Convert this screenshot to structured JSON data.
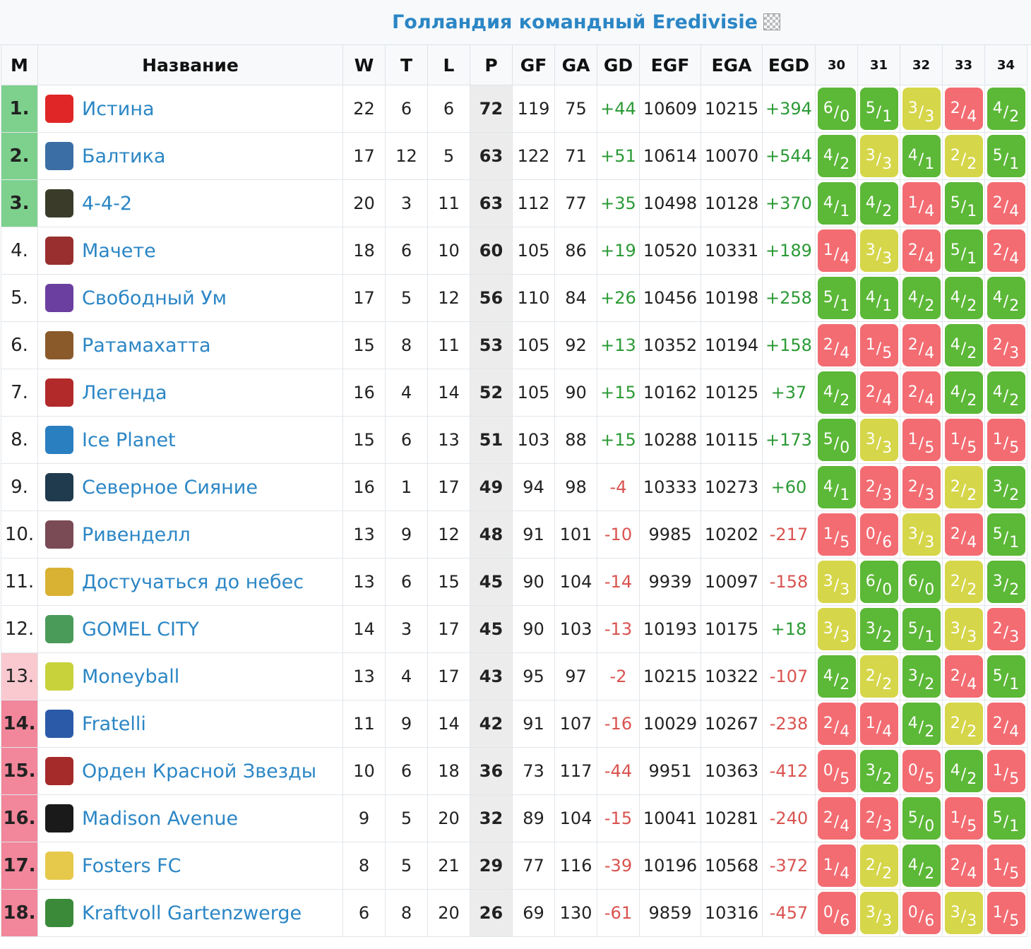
{
  "title": "Голландия командный Eredivisie",
  "headers": {
    "pos": "M",
    "name": "Название",
    "w": "W",
    "t": "T",
    "l": "L",
    "p": "P",
    "gf": "GF",
    "ga": "GA",
    "gd": "GD",
    "egf": "EGF",
    "ega": "EGA",
    "egd": "EGD",
    "rounds": [
      "30",
      "31",
      "32",
      "33",
      "34"
    ]
  },
  "colors": {
    "link": "#2b86c5",
    "promotion": "#7dd18d",
    "playoff": "#f9c9cf",
    "relegation": "#f2869a",
    "win": "#5cb837",
    "draw": "#d6d64a",
    "loss": "#f36c72"
  },
  "rows": [
    {
      "pos": "1.",
      "zone": "green",
      "name": "Истина",
      "logo": "#e02626",
      "w": "22",
      "t": "6",
      "l": "6",
      "p": "72",
      "gf": "119",
      "ga": "75",
      "gd": "+44",
      "egf": "10609",
      "ega": "10215",
      "egd": "+394",
      "results": [
        {
          "a": "6",
          "b": "0",
          "c": "win"
        },
        {
          "a": "5",
          "b": "1",
          "c": "win"
        },
        {
          "a": "3",
          "b": "3",
          "c": "draw"
        },
        {
          "a": "2",
          "b": "4",
          "c": "loss"
        },
        {
          "a": "4",
          "b": "2",
          "c": "win"
        }
      ]
    },
    {
      "pos": "2.",
      "zone": "green",
      "name": "Балтика",
      "logo": "#3a6ea5",
      "w": "17",
      "t": "12",
      "l": "5",
      "p": "63",
      "gf": "122",
      "ga": "71",
      "gd": "+51",
      "egf": "10614",
      "ega": "10070",
      "egd": "+544",
      "results": [
        {
          "a": "4",
          "b": "2",
          "c": "win"
        },
        {
          "a": "3",
          "b": "3",
          "c": "draw"
        },
        {
          "a": "4",
          "b": "1",
          "c": "win"
        },
        {
          "a": "2",
          "b": "2",
          "c": "draw"
        },
        {
          "a": "5",
          "b": "1",
          "c": "win"
        }
      ]
    },
    {
      "pos": "3.",
      "zone": "green",
      "name": "4-4-2",
      "logo": "#3b3b2a",
      "w": "20",
      "t": "3",
      "l": "11",
      "p": "63",
      "gf": "112",
      "ga": "77",
      "gd": "+35",
      "egf": "10498",
      "ega": "10128",
      "egd": "+370",
      "results": [
        {
          "a": "4",
          "b": "1",
          "c": "win"
        },
        {
          "a": "4",
          "b": "2",
          "c": "win"
        },
        {
          "a": "1",
          "b": "4",
          "c": "loss"
        },
        {
          "a": "5",
          "b": "1",
          "c": "win"
        },
        {
          "a": "2",
          "b": "4",
          "c": "loss"
        }
      ]
    },
    {
      "pos": "4.",
      "zone": "",
      "name": "Мачете",
      "logo": "#9a2f2f",
      "w": "18",
      "t": "6",
      "l": "10",
      "p": "60",
      "gf": "105",
      "ga": "86",
      "gd": "+19",
      "egf": "10520",
      "ega": "10331",
      "egd": "+189",
      "results": [
        {
          "a": "1",
          "b": "4",
          "c": "loss"
        },
        {
          "a": "3",
          "b": "3",
          "c": "draw"
        },
        {
          "a": "2",
          "b": "4",
          "c": "loss"
        },
        {
          "a": "5",
          "b": "1",
          "c": "win"
        },
        {
          "a": "2",
          "b": "4",
          "c": "loss"
        }
      ]
    },
    {
      "pos": "5.",
      "zone": "",
      "name": "Свободный Ум",
      "logo": "#6b3fa0",
      "w": "17",
      "t": "5",
      "l": "12",
      "p": "56",
      "gf": "110",
      "ga": "84",
      "gd": "+26",
      "egf": "10456",
      "ega": "10198",
      "egd": "+258",
      "results": [
        {
          "a": "5",
          "b": "1",
          "c": "win"
        },
        {
          "a": "4",
          "b": "1",
          "c": "win"
        },
        {
          "a": "4",
          "b": "2",
          "c": "win"
        },
        {
          "a": "4",
          "b": "2",
          "c": "win"
        },
        {
          "a": "4",
          "b": "2",
          "c": "win"
        }
      ]
    },
    {
      "pos": "6.",
      "zone": "",
      "name": "Ратамахатта",
      "logo": "#8a5a2b",
      "w": "15",
      "t": "8",
      "l": "11",
      "p": "53",
      "gf": "105",
      "ga": "92",
      "gd": "+13",
      "egf": "10352",
      "ega": "10194",
      "egd": "+158",
      "results": [
        {
          "a": "2",
          "b": "4",
          "c": "loss"
        },
        {
          "a": "1",
          "b": "5",
          "c": "loss"
        },
        {
          "a": "2",
          "b": "4",
          "c": "loss"
        },
        {
          "a": "4",
          "b": "2",
          "c": "win"
        },
        {
          "a": "2",
          "b": "3",
          "c": "loss"
        }
      ]
    },
    {
      "pos": "7.",
      "zone": "",
      "name": "Легенда",
      "logo": "#b22a2a",
      "w": "16",
      "t": "4",
      "l": "14",
      "p": "52",
      "gf": "105",
      "ga": "90",
      "gd": "+15",
      "egf": "10162",
      "ega": "10125",
      "egd": "+37",
      "results": [
        {
          "a": "4",
          "b": "2",
          "c": "win"
        },
        {
          "a": "2",
          "b": "4",
          "c": "loss"
        },
        {
          "a": "2",
          "b": "4",
          "c": "loss"
        },
        {
          "a": "4",
          "b": "2",
          "c": "win"
        },
        {
          "a": "4",
          "b": "2",
          "c": "win"
        }
      ]
    },
    {
      "pos": "8.",
      "zone": "",
      "name": "Ice Planet",
      "logo": "#2a7fc1",
      "w": "15",
      "t": "6",
      "l": "13",
      "p": "51",
      "gf": "103",
      "ga": "88",
      "gd": "+15",
      "egf": "10288",
      "ega": "10115",
      "egd": "+173",
      "results": [
        {
          "a": "5",
          "b": "0",
          "c": "win"
        },
        {
          "a": "3",
          "b": "3",
          "c": "draw"
        },
        {
          "a": "1",
          "b": "5",
          "c": "loss"
        },
        {
          "a": "1",
          "b": "5",
          "c": "loss"
        },
        {
          "a": "1",
          "b": "5",
          "c": "loss"
        }
      ]
    },
    {
      "pos": "9.",
      "zone": "",
      "name": "Северное Сияние",
      "logo": "#1f3b4d",
      "w": "16",
      "t": "1",
      "l": "17",
      "p": "49",
      "gf": "94",
      "ga": "98",
      "gd": "-4",
      "egf": "10333",
      "ega": "10273",
      "egd": "+60",
      "results": [
        {
          "a": "4",
          "b": "1",
          "c": "win"
        },
        {
          "a": "2",
          "b": "3",
          "c": "loss"
        },
        {
          "a": "2",
          "b": "3",
          "c": "loss"
        },
        {
          "a": "2",
          "b": "2",
          "c": "draw"
        },
        {
          "a": "3",
          "b": "2",
          "c": "win"
        }
      ]
    },
    {
      "pos": "10.",
      "zone": "",
      "name": "Ривенделл",
      "logo": "#7a4a55",
      "w": "13",
      "t": "9",
      "l": "12",
      "p": "48",
      "gf": "91",
      "ga": "101",
      "gd": "-10",
      "egf": "9985",
      "ega": "10202",
      "egd": "-217",
      "results": [
        {
          "a": "1",
          "b": "5",
          "c": "loss"
        },
        {
          "a": "0",
          "b": "6",
          "c": "loss"
        },
        {
          "a": "3",
          "b": "3",
          "c": "draw"
        },
        {
          "a": "2",
          "b": "4",
          "c": "loss"
        },
        {
          "a": "5",
          "b": "1",
          "c": "win"
        }
      ]
    },
    {
      "pos": "11.",
      "zone": "",
      "name": "Достучаться до небес",
      "logo": "#d9b233",
      "w": "13",
      "t": "6",
      "l": "15",
      "p": "45",
      "gf": "90",
      "ga": "104",
      "gd": "-14",
      "egf": "9939",
      "ega": "10097",
      "egd": "-158",
      "results": [
        {
          "a": "3",
          "b": "3",
          "c": "draw"
        },
        {
          "a": "6",
          "b": "0",
          "c": "win"
        },
        {
          "a": "6",
          "b": "0",
          "c": "win"
        },
        {
          "a": "2",
          "b": "2",
          "c": "draw"
        },
        {
          "a": "3",
          "b": "2",
          "c": "win"
        }
      ]
    },
    {
      "pos": "12.",
      "zone": "",
      "name": "GOMEL CITY",
      "logo": "#4a9a5a",
      "w": "14",
      "t": "3",
      "l": "17",
      "p": "45",
      "gf": "90",
      "ga": "103",
      "gd": "-13",
      "egf": "10193",
      "ega": "10175",
      "egd": "+18",
      "results": [
        {
          "a": "3",
          "b": "3",
          "c": "draw"
        },
        {
          "a": "3",
          "b": "2",
          "c": "win"
        },
        {
          "a": "5",
          "b": "1",
          "c": "win"
        },
        {
          "a": "3",
          "b": "3",
          "c": "draw"
        },
        {
          "a": "2",
          "b": "3",
          "c": "loss"
        }
      ]
    },
    {
      "pos": "13.",
      "zone": "lightred",
      "name": "Moneyball",
      "logo": "#c8d23a",
      "w": "13",
      "t": "4",
      "l": "17",
      "p": "43",
      "gf": "95",
      "ga": "97",
      "gd": "-2",
      "egf": "10215",
      "ega": "10322",
      "egd": "-107",
      "results": [
        {
          "a": "4",
          "b": "2",
          "c": "win"
        },
        {
          "a": "2",
          "b": "2",
          "c": "draw"
        },
        {
          "a": "3",
          "b": "2",
          "c": "win"
        },
        {
          "a": "2",
          "b": "4",
          "c": "loss"
        },
        {
          "a": "5",
          "b": "1",
          "c": "win"
        }
      ]
    },
    {
      "pos": "14.",
      "zone": "red",
      "name": "Fratelli",
      "logo": "#2a5aa8",
      "w": "11",
      "t": "9",
      "l": "14",
      "p": "42",
      "gf": "91",
      "ga": "107",
      "gd": "-16",
      "egf": "10029",
      "ega": "10267",
      "egd": "-238",
      "results": [
        {
          "a": "2",
          "b": "4",
          "c": "loss"
        },
        {
          "a": "1",
          "b": "4",
          "c": "loss"
        },
        {
          "a": "4",
          "b": "2",
          "c": "win"
        },
        {
          "a": "2",
          "b": "2",
          "c": "draw"
        },
        {
          "a": "2",
          "b": "4",
          "c": "loss"
        }
      ]
    },
    {
      "pos": "15.",
      "zone": "red",
      "name": "Орден Красной Звезды",
      "logo": "#a52a2a",
      "w": "10",
      "t": "6",
      "l": "18",
      "p": "36",
      "gf": "73",
      "ga": "117",
      "gd": "-44",
      "egf": "9951",
      "ega": "10363",
      "egd": "-412",
      "results": [
        {
          "a": "0",
          "b": "5",
          "c": "loss"
        },
        {
          "a": "3",
          "b": "2",
          "c": "win"
        },
        {
          "a": "0",
          "b": "5",
          "c": "loss"
        },
        {
          "a": "4",
          "b": "2",
          "c": "win"
        },
        {
          "a": "1",
          "b": "5",
          "c": "loss"
        }
      ]
    },
    {
      "pos": "16.",
      "zone": "red",
      "name": "Madison Avenue",
      "logo": "#1a1a1a",
      "w": "9",
      "t": "5",
      "l": "20",
      "p": "32",
      "gf": "89",
      "ga": "104",
      "gd": "-15",
      "egf": "10041",
      "ega": "10281",
      "egd": "-240",
      "results": [
        {
          "a": "2",
          "b": "4",
          "c": "loss"
        },
        {
          "a": "2",
          "b": "3",
          "c": "loss"
        },
        {
          "a": "5",
          "b": "0",
          "c": "win"
        },
        {
          "a": "1",
          "b": "5",
          "c": "loss"
        },
        {
          "a": "5",
          "b": "1",
          "c": "win"
        }
      ]
    },
    {
      "pos": "17.",
      "zone": "red",
      "name": "Fosters FC",
      "logo": "#e6c84a",
      "w": "8",
      "t": "5",
      "l": "21",
      "p": "29",
      "gf": "77",
      "ga": "116",
      "gd": "-39",
      "egf": "10196",
      "ega": "10568",
      "egd": "-372",
      "results": [
        {
          "a": "1",
          "b": "4",
          "c": "loss"
        },
        {
          "a": "2",
          "b": "2",
          "c": "draw"
        },
        {
          "a": "4",
          "b": "2",
          "c": "win"
        },
        {
          "a": "2",
          "b": "4",
          "c": "loss"
        },
        {
          "a": "1",
          "b": "5",
          "c": "loss"
        }
      ]
    },
    {
      "pos": "18.",
      "zone": "red",
      "name": "Kraftvoll Gartenzwerge",
      "logo": "#3a8a3a",
      "w": "6",
      "t": "8",
      "l": "20",
      "p": "26",
      "gf": "69",
      "ga": "130",
      "gd": "-61",
      "egf": "9859",
      "ega": "10316",
      "egd": "-457",
      "results": [
        {
          "a": "0",
          "b": "6",
          "c": "loss"
        },
        {
          "a": "3",
          "b": "3",
          "c": "draw"
        },
        {
          "a": "0",
          "b": "6",
          "c": "loss"
        },
        {
          "a": "3",
          "b": "3",
          "c": "draw"
        },
        {
          "a": "1",
          "b": "5",
          "c": "loss"
        }
      ]
    }
  ]
}
